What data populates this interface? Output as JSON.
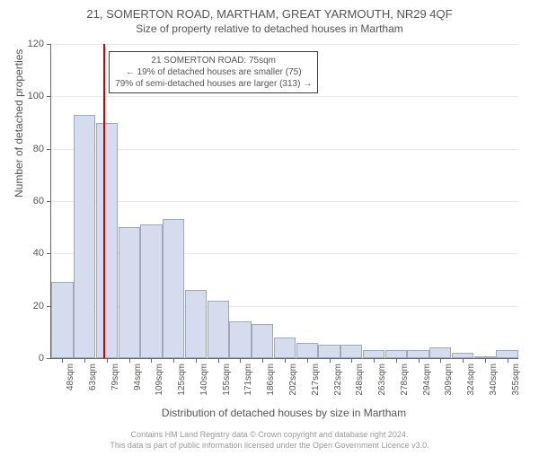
{
  "title_main": "21, SOMERTON ROAD, MARTHAM, GREAT YARMOUTH, NR29 4QF",
  "title_sub": "Size of property relative to detached houses in Martham",
  "ylabel": "Number of detached properties",
  "xlabel": "Distribution of detached houses by size in Martham",
  "chart": {
    "type": "bar",
    "ylim": [
      0,
      120
    ],
    "ytick_step": 20,
    "bar_fill": "#d4dced",
    "bar_border": "#9fa9be",
    "grid_color": "#e9e9e9",
    "axis_color": "#666666",
    "background": "#ffffff",
    "marker_color": "#d60000",
    "marker_x_index": 1.85,
    "categories": [
      "48sqm",
      "63sqm",
      "79sqm",
      "94sqm",
      "109sqm",
      "125sqm",
      "140sqm",
      "155sqm",
      "171sqm",
      "186sqm",
      "202sqm",
      "217sqm",
      "232sqm",
      "248sqm",
      "263sqm",
      "278sqm",
      "294sqm",
      "309sqm",
      "324sqm",
      "340sqm",
      "355sqm"
    ],
    "values": [
      29,
      93,
      90,
      50,
      51,
      53,
      26,
      22,
      14,
      13,
      8,
      6,
      5,
      5,
      3,
      3,
      3,
      4,
      2,
      0,
      3
    ],
    "title_fontsize": 13,
    "sub_fontsize": 12,
    "label_fontsize": 12,
    "tick_fontsize": 11,
    "xtick_fontsize": 10,
    "xtick_rotation": -90
  },
  "annotation": {
    "line1": "21 SOMERTON ROAD: 75sqm",
    "line2": "← 19% of detached houses are smaller (75)",
    "line3": "79% of semi-detached houses are larger (313) →",
    "border_color": "#d60000",
    "background": "#ffffff",
    "fontsize": 10
  },
  "footer": {
    "line1": "Contains HM Land Registry data © Crown copyright and database right 2024.",
    "line2": "This data is part of public information licensed under the Open Government Licence v3.0."
  }
}
